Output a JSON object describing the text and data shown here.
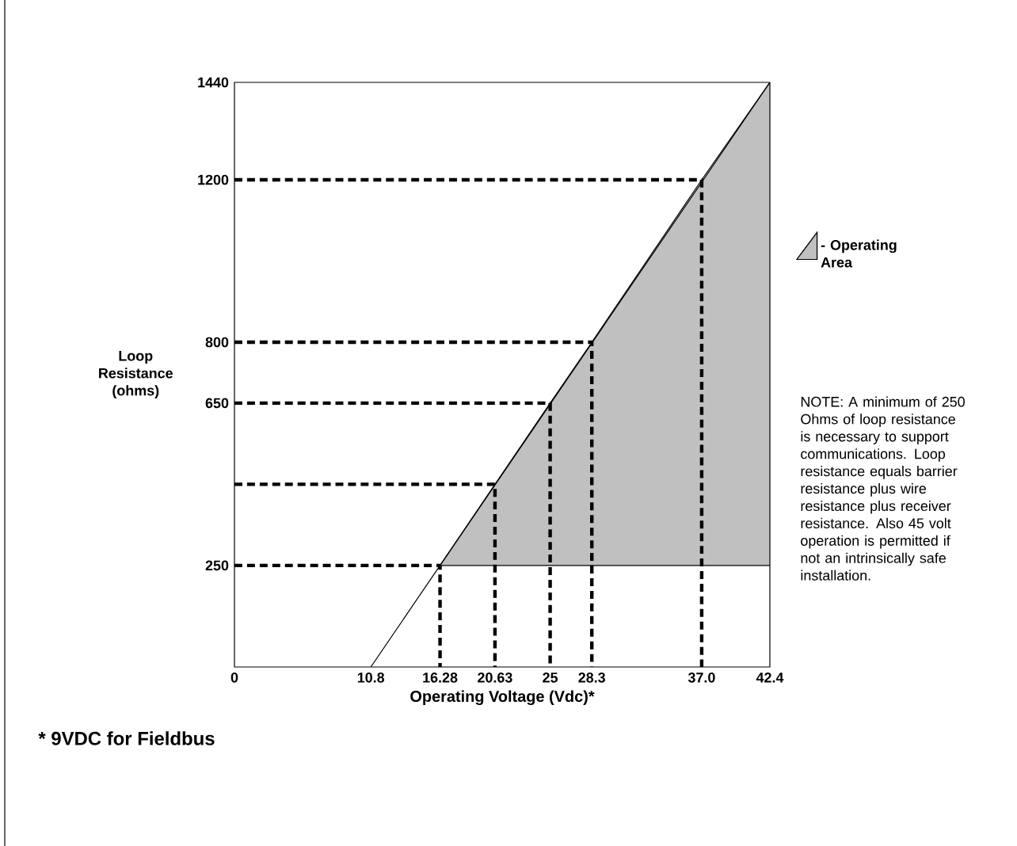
{
  "chart_data": {
    "type": "line",
    "xlabel": "Operating Voltage (Vdc)*",
    "ylabel": "Loop Resistance (ohms)",
    "xlim": [
      0,
      42.4
    ],
    "ylim": [
      0,
      1440
    ],
    "xticks": [
      0,
      10.8,
      16.28,
      20.63,
      25,
      28.3,
      {
        "value": 37,
        "label": "37.0"
      },
      42.4
    ],
    "yticks": [
      250,
      650,
      800,
      1200,
      1440
    ],
    "grid": false,
    "legend": "right",
    "marker": "none",
    "series": [
      {
        "type": "area",
        "name": "- Operating Area",
        "color": "#c0c0c0",
        "x": [
          16.28,
          42.4,
          42.4
        ],
        "values": [
          250,
          1440,
          250
        ]
      },
      {
        "color": "#000000",
        "x": [
          10.8,
          16.28,
          20.63,
          25,
          28.3,
          37.0,
          42.4
        ],
        "values": [
          0,
          250,
          450,
          650,
          800,
          1200,
          1440
        ]
      },
      {
        "line_style": "dashed",
        "color": "#000000",
        "x": [
          0,
          16.28,
          16.28
        ],
        "values": [
          250,
          250,
          0
        ]
      },
      {
        "line_style": "dashed",
        "color": "#000000",
        "x": [
          0,
          20.63,
          20.63
        ],
        "values": [
          450,
          450,
          0
        ]
      },
      {
        "line_style": "dashed",
        "color": "#000000",
        "x": [
          0,
          25,
          25
        ],
        "values": [
          650,
          650,
          0
        ]
      },
      {
        "line_style": "dashed",
        "color": "#000000",
        "x": [
          0,
          28.3,
          28.3
        ],
        "values": [
          800,
          800,
          0
        ]
      },
      {
        "line_style": "dashed",
        "color": "#000000",
        "x": [
          0,
          37,
          37
        ],
        "values": [
          1200,
          1200,
          0
        ]
      }
    ],
    "annotations": [
      "NOTE: A minimum of 250 Ohms of loop resistance is necessary to support communications. Loop resistance equals barrier resistance plus wire resistance plus receiver resistance. Also 45 volt operation is permitted if not an intrinsically safe installation.",
      "* 9VDC for Fieldbus"
    ]
  }
}
